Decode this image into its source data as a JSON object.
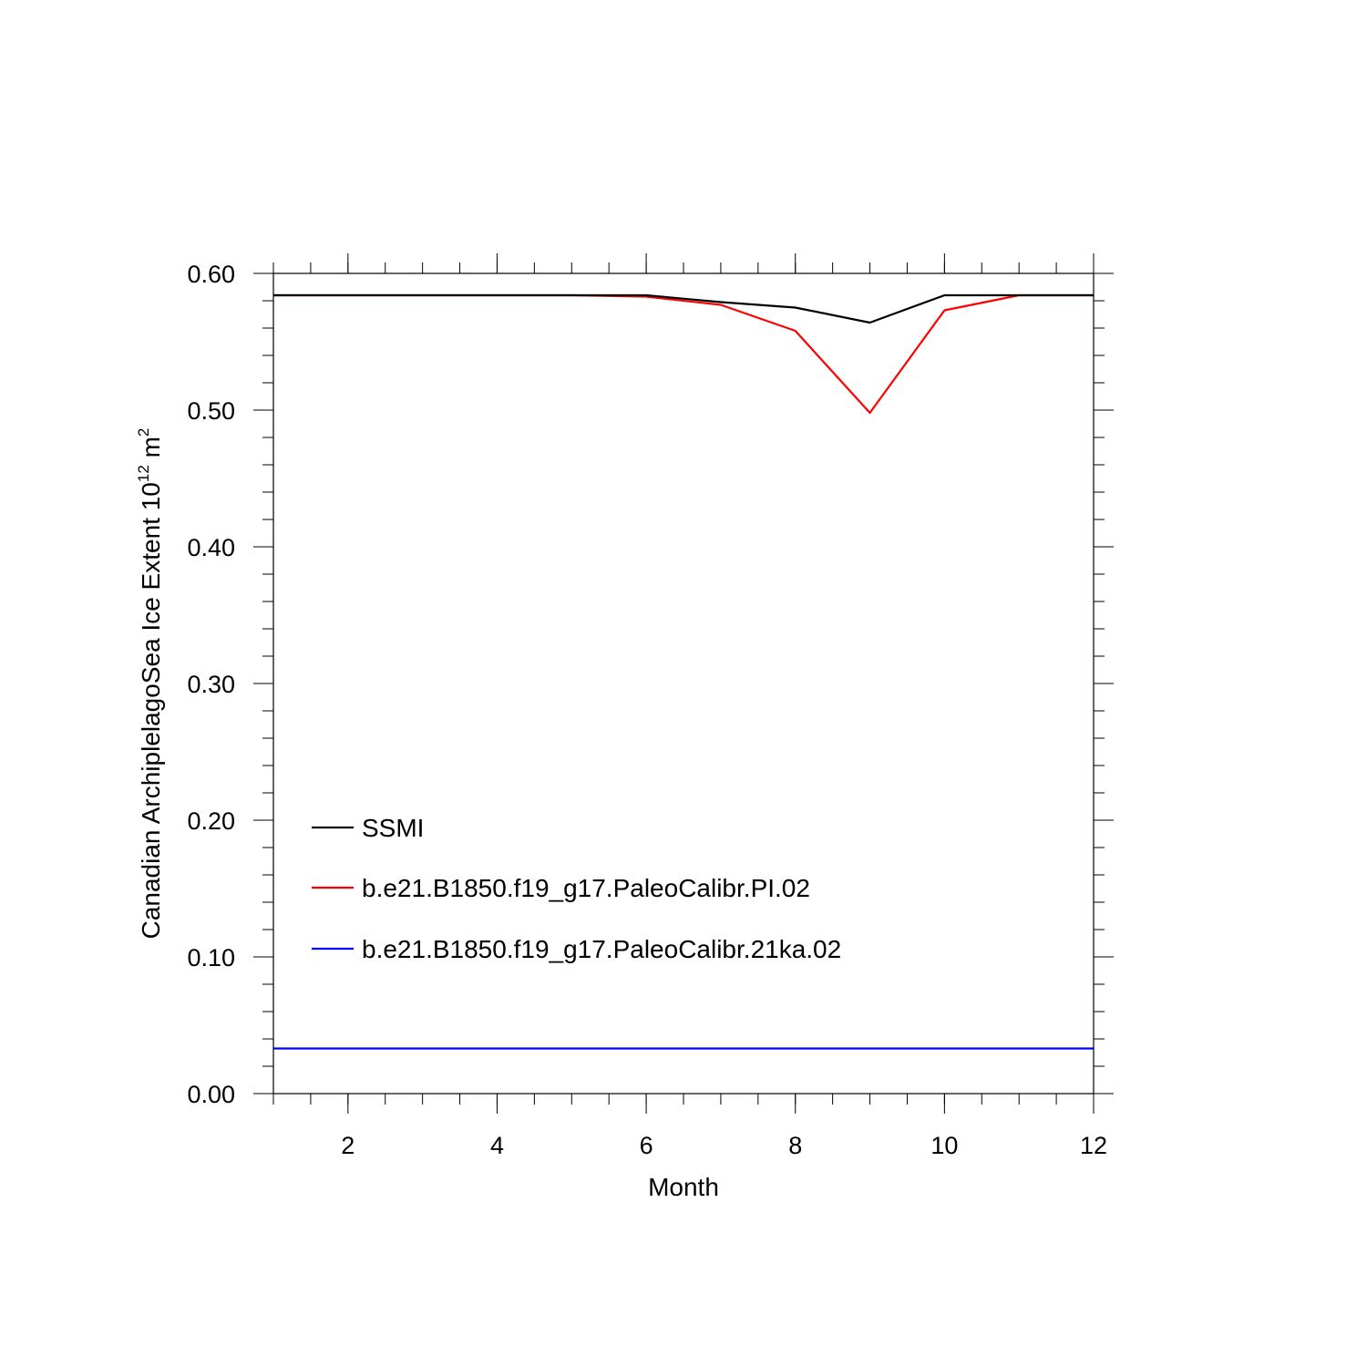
{
  "chart_data": {
    "type": "line",
    "title": "",
    "xlabel": "Month",
    "ylabel": "Canadian ArchiplelagoSea Ice Extent 10",
    "ylabel_sup": "12",
    "ylabel_unit": " m",
    "ylabel_unit_sup": "2",
    "xlim": [
      1,
      12
    ],
    "ylim": [
      0.0,
      0.6
    ],
    "x_ticks": [
      2,
      4,
      6,
      8,
      10,
      12
    ],
    "x_tick_labels": [
      "2",
      "4",
      "6",
      "8",
      "10",
      "12"
    ],
    "y_ticks": [
      0.0,
      0.1,
      0.2,
      0.3,
      0.4,
      0.5,
      0.6
    ],
    "y_tick_labels": [
      "0.00",
      "0.10",
      "0.20",
      "0.30",
      "0.40",
      "0.50",
      "0.60"
    ],
    "grid": false,
    "legend_position": "bottom-left",
    "x": [
      1,
      2,
      3,
      4,
      5,
      6,
      7,
      8,
      9,
      10,
      11,
      12
    ],
    "series": [
      {
        "name": "SSMI",
        "color": "#000000",
        "values": [
          0.584,
          0.584,
          0.584,
          0.584,
          0.584,
          0.584,
          0.579,
          0.575,
          0.564,
          0.584,
          0.584,
          0.584
        ]
      },
      {
        "name": "b.e21.B1850.f19_g17.PaleoCalibr.PI.02",
        "color": "#ff0000",
        "values": [
          0.584,
          0.584,
          0.584,
          0.584,
          0.584,
          0.583,
          0.577,
          0.558,
          0.498,
          0.573,
          0.584,
          0.584
        ]
      },
      {
        "name": "b.e21.B1850.f19_g17.PaleoCalibr.21ka.02",
        "color": "#0000ff",
        "values": [
          0.033,
          0.033,
          0.033,
          0.033,
          0.033,
          0.033,
          0.033,
          0.033,
          0.033,
          0.033,
          0.033,
          0.033
        ]
      }
    ]
  }
}
